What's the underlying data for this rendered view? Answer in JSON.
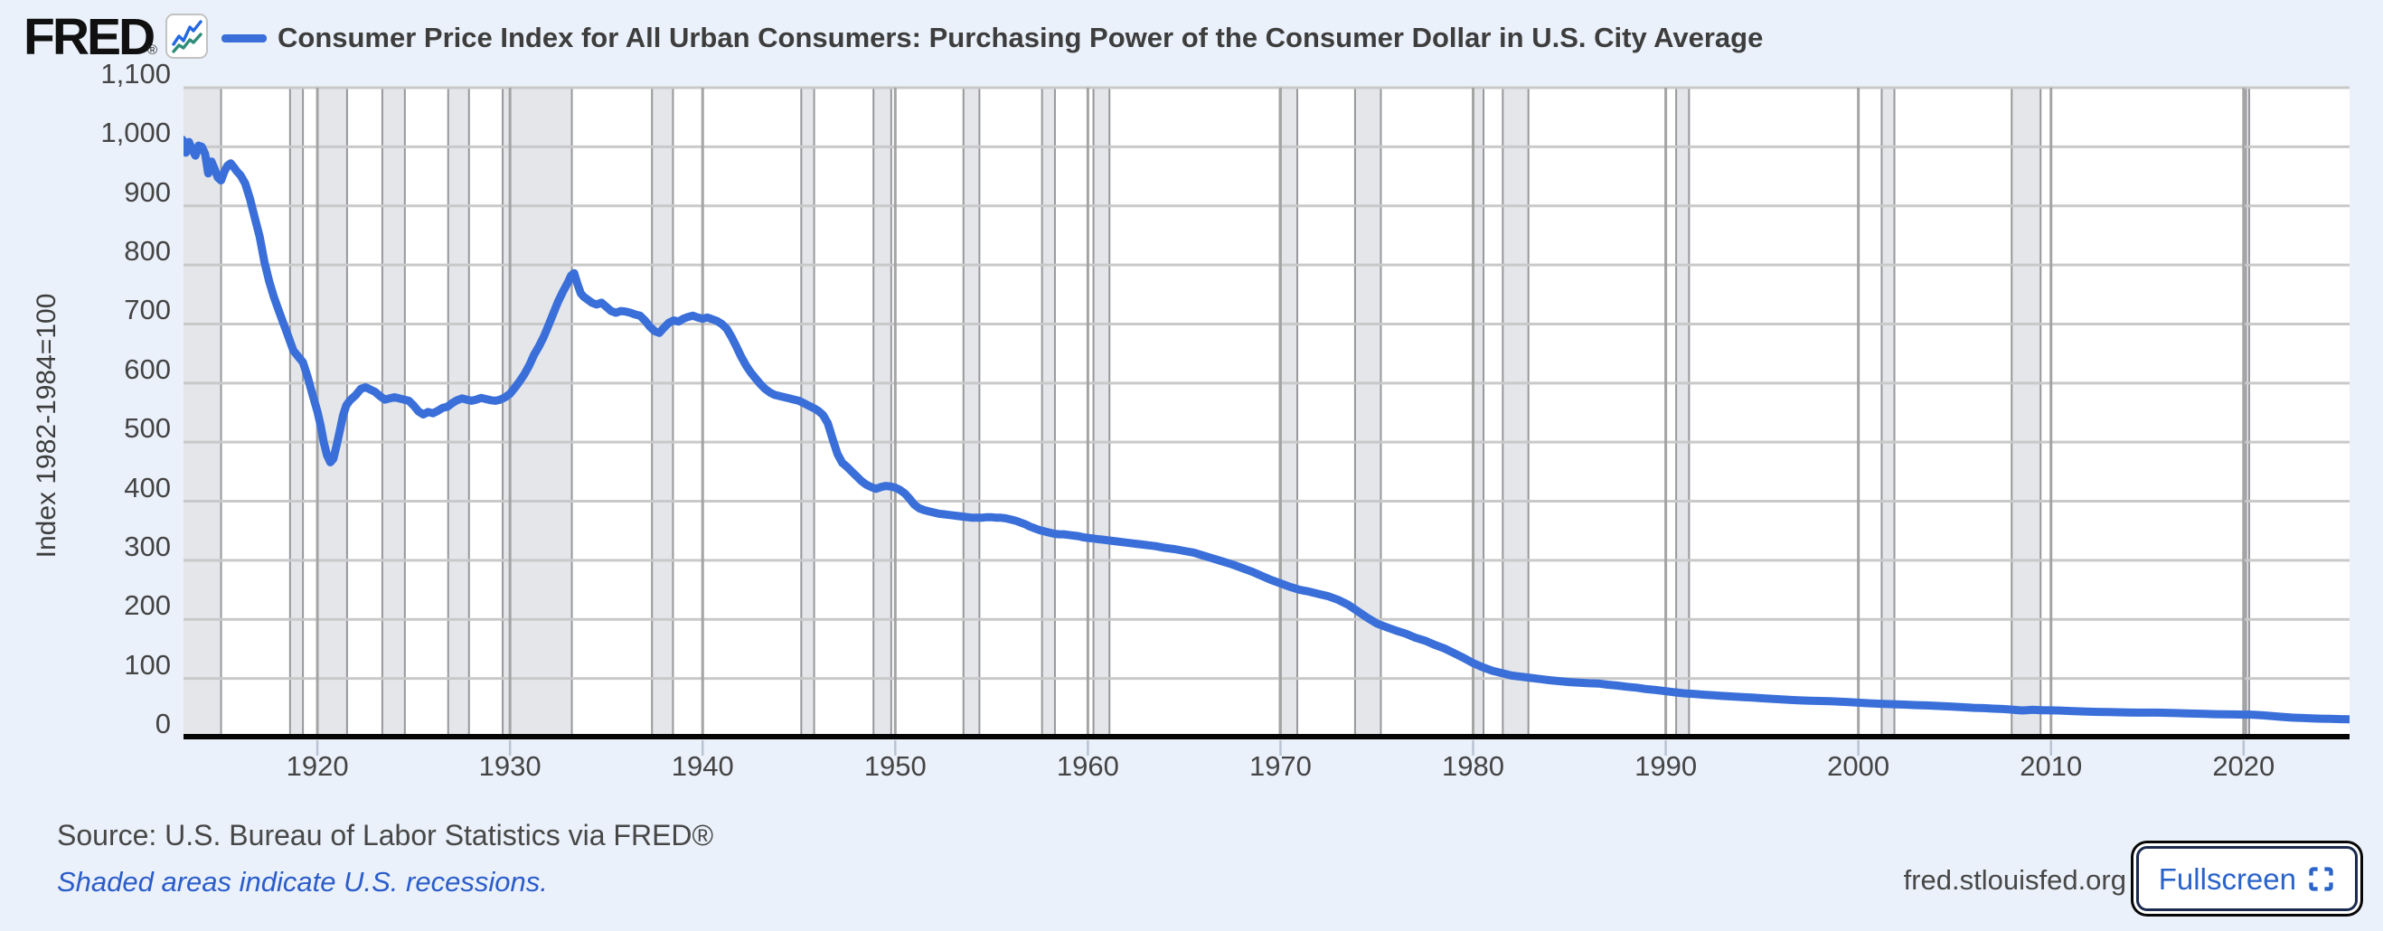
{
  "header": {
    "logo": "FRED",
    "registered": "®",
    "logo_icon": "mini-line-chart-icon",
    "series_title": "Consumer Price Index for All Urban Consumers: Purchasing Power of the Consumer Dollar in U.S. City Average"
  },
  "footer": {
    "source": "Source: U.S. Bureau of Labor Statistics via FRED®",
    "recession_note": "Shaded areas indicate U.S. recessions.",
    "site": "fred.stlouisfed.org",
    "fullscreen_label": "Fullscreen",
    "fullscreen_icon": "expand-icon"
  },
  "colors": {
    "page_bg": "#eaf1fa",
    "plot_bg": "#ffffff",
    "line": "#3a6fd9",
    "recession_band": "#e4e6ea",
    "recession_band_edge": "#96989b",
    "h_gridline": "#c9c9c9",
    "v_gridline": "#a4a4a4",
    "axis": "#050505",
    "x_tick_mark": "#b9c3d3",
    "logo_icon_blue": "#2468e0",
    "logo_icon_teal": "#2e8c78",
    "link_blue": "#2b5cc9",
    "button_border": "#1a2b4f",
    "button_text": "#2a63c9"
  },
  "chart_data": {
    "type": "line",
    "title": "Consumer Price Index for All Urban Consumers: Purchasing Power of the Consumer Dollar in U.S. City Average",
    "xlabel": "",
    "ylabel": "Index 1982-1984=100",
    "legend_position": "top",
    "grid": true,
    "x_range": [
      1913.05,
      2025.5
    ],
    "ylim": [
      0,
      1100
    ],
    "ytick_values": [
      0,
      100,
      200,
      300,
      400,
      500,
      600,
      700,
      800,
      900,
      1000,
      1100
    ],
    "ytick_labels": [
      "0",
      "100",
      "200",
      "300",
      "400",
      "500",
      "600",
      "700",
      "800",
      "900",
      "1,000",
      "1,100"
    ],
    "xticks": [
      1920,
      1930,
      1940,
      1950,
      1960,
      1970,
      1980,
      1990,
      2000,
      2010,
      2020
    ],
    "recessions": [
      [
        1913.05,
        1915.0
      ],
      [
        1918.58,
        1919.25
      ],
      [
        1920.0,
        1921.54
      ],
      [
        1923.37,
        1924.54
      ],
      [
        1926.79,
        1927.87
      ],
      [
        1929.62,
        1933.21
      ],
      [
        1937.37,
        1938.46
      ],
      [
        1945.12,
        1945.79
      ],
      [
        1948.87,
        1949.79
      ],
      [
        1953.54,
        1954.37
      ],
      [
        1957.62,
        1958.29
      ],
      [
        1960.29,
        1961.12
      ],
      [
        1969.96,
        1970.87
      ],
      [
        1973.87,
        1975.21
      ],
      [
        1980.0,
        1980.54
      ],
      [
        1981.54,
        1982.87
      ],
      [
        1990.54,
        1991.21
      ],
      [
        2001.21,
        2001.87
      ],
      [
        2007.96,
        2009.46
      ],
      [
        2020.12,
        2020.29
      ]
    ],
    "points": [
      [
        1913.0,
        1012
      ],
      [
        1913.17,
        990
      ],
      [
        1913.33,
        1008
      ],
      [
        1913.5,
        995
      ],
      [
        1913.67,
        985
      ],
      [
        1913.83,
        1002
      ],
      [
        1914.0,
        1000
      ],
      [
        1914.17,
        988
      ],
      [
        1914.33,
        955
      ],
      [
        1914.5,
        975
      ],
      [
        1914.67,
        962
      ],
      [
        1914.83,
        948
      ],
      [
        1915.0,
        943
      ],
      [
        1915.17,
        958
      ],
      [
        1915.33,
        968
      ],
      [
        1915.5,
        972
      ],
      [
        1915.67,
        965
      ],
      [
        1915.83,
        958
      ],
      [
        1916.0,
        952
      ],
      [
        1916.25,
        938
      ],
      [
        1916.5,
        912
      ],
      [
        1916.75,
        880
      ],
      [
        1917.0,
        848
      ],
      [
        1917.25,
        805
      ],
      [
        1917.5,
        772
      ],
      [
        1917.75,
        745
      ],
      [
        1918.0,
        722
      ],
      [
        1918.25,
        700
      ],
      [
        1918.5,
        678
      ],
      [
        1918.75,
        655
      ],
      [
        1919.0,
        645
      ],
      [
        1919.25,
        635
      ],
      [
        1919.5,
        610
      ],
      [
        1919.75,
        580
      ],
      [
        1920.0,
        552
      ],
      [
        1920.17,
        528
      ],
      [
        1920.33,
        500
      ],
      [
        1920.5,
        478
      ],
      [
        1920.67,
        466
      ],
      [
        1920.83,
        472
      ],
      [
        1921.0,
        495
      ],
      [
        1921.17,
        520
      ],
      [
        1921.33,
        545
      ],
      [
        1921.5,
        562
      ],
      [
        1921.67,
        570
      ],
      [
        1921.83,
        575
      ],
      [
        1922.0,
        580
      ],
      [
        1922.25,
        590
      ],
      [
        1922.5,
        593
      ],
      [
        1922.75,
        589
      ],
      [
        1923.0,
        585
      ],
      [
        1923.25,
        578
      ],
      [
        1923.5,
        572
      ],
      [
        1923.75,
        574
      ],
      [
        1924.0,
        576
      ],
      [
        1924.25,
        574
      ],
      [
        1924.5,
        572
      ],
      [
        1924.75,
        570
      ],
      [
        1925.0,
        562
      ],
      [
        1925.25,
        552
      ],
      [
        1925.5,
        547
      ],
      [
        1925.75,
        551
      ],
      [
        1926.0,
        549
      ],
      [
        1926.25,
        553
      ],
      [
        1926.5,
        558
      ],
      [
        1926.75,
        560
      ],
      [
        1927.0,
        566
      ],
      [
        1927.25,
        571
      ],
      [
        1927.5,
        574
      ],
      [
        1927.75,
        572
      ],
      [
        1928.0,
        570
      ],
      [
        1928.25,
        572
      ],
      [
        1928.5,
        575
      ],
      [
        1928.75,
        573
      ],
      [
        1929.0,
        571
      ],
      [
        1929.25,
        570
      ],
      [
        1929.5,
        572
      ],
      [
        1929.75,
        576
      ],
      [
        1930.0,
        582
      ],
      [
        1930.25,
        592
      ],
      [
        1930.5,
        603
      ],
      [
        1930.75,
        615
      ],
      [
        1931.0,
        630
      ],
      [
        1931.25,
        648
      ],
      [
        1931.5,
        662
      ],
      [
        1931.75,
        678
      ],
      [
        1932.0,
        698
      ],
      [
        1932.25,
        718
      ],
      [
        1932.5,
        738
      ],
      [
        1932.75,
        755
      ],
      [
        1933.0,
        770
      ],
      [
        1933.17,
        782
      ],
      [
        1933.33,
        786
      ],
      [
        1933.5,
        768
      ],
      [
        1933.67,
        752
      ],
      [
        1933.83,
        746
      ],
      [
        1934.0,
        742
      ],
      [
        1934.25,
        736
      ],
      [
        1934.5,
        733
      ],
      [
        1934.75,
        736
      ],
      [
        1935.0,
        729
      ],
      [
        1935.25,
        722
      ],
      [
        1935.5,
        719
      ],
      [
        1935.75,
        722
      ],
      [
        1936.0,
        721
      ],
      [
        1936.25,
        719
      ],
      [
        1936.5,
        716
      ],
      [
        1936.75,
        714
      ],
      [
        1937.0,
        706
      ],
      [
        1937.25,
        696
      ],
      [
        1937.5,
        688
      ],
      [
        1937.75,
        685
      ],
      [
        1938.0,
        694
      ],
      [
        1938.25,
        702
      ],
      [
        1938.5,
        706
      ],
      [
        1938.75,
        704
      ],
      [
        1939.0,
        709
      ],
      [
        1939.25,
        712
      ],
      [
        1939.5,
        714
      ],
      [
        1939.75,
        711
      ],
      [
        1940.0,
        709
      ],
      [
        1940.25,
        711
      ],
      [
        1940.5,
        708
      ],
      [
        1940.75,
        705
      ],
      [
        1941.0,
        700
      ],
      [
        1941.25,
        692
      ],
      [
        1941.5,
        678
      ],
      [
        1941.75,
        662
      ],
      [
        1942.0,
        645
      ],
      [
        1942.25,
        630
      ],
      [
        1942.5,
        618
      ],
      [
        1942.75,
        608
      ],
      [
        1943.0,
        598
      ],
      [
        1943.25,
        590
      ],
      [
        1943.5,
        584
      ],
      [
        1943.75,
        580
      ],
      [
        1944.0,
        578
      ],
      [
        1944.25,
        576
      ],
      [
        1944.5,
        574
      ],
      [
        1944.75,
        572
      ],
      [
        1945.0,
        570
      ],
      [
        1945.25,
        566
      ],
      [
        1945.5,
        562
      ],
      [
        1945.75,
        558
      ],
      [
        1946.0,
        553
      ],
      [
        1946.25,
        546
      ],
      [
        1946.5,
        532
      ],
      [
        1946.75,
        505
      ],
      [
        1947.0,
        480
      ],
      [
        1947.25,
        465
      ],
      [
        1947.5,
        458
      ],
      [
        1947.75,
        450
      ],
      [
        1948.0,
        442
      ],
      [
        1948.25,
        434
      ],
      [
        1948.5,
        428
      ],
      [
        1948.75,
        424
      ],
      [
        1949.0,
        421
      ],
      [
        1949.25,
        424
      ],
      [
        1949.5,
        426
      ],
      [
        1949.75,
        425
      ],
      [
        1950.0,
        423
      ],
      [
        1950.25,
        419
      ],
      [
        1950.5,
        413
      ],
      [
        1950.75,
        404
      ],
      [
        1951.0,
        394
      ],
      [
        1951.25,
        388
      ],
      [
        1951.5,
        385
      ],
      [
        1951.75,
        383
      ],
      [
        1952.0,
        381
      ],
      [
        1952.25,
        379
      ],
      [
        1952.5,
        378
      ],
      [
        1952.75,
        377
      ],
      [
        1953.0,
        376
      ],
      [
        1953.25,
        375
      ],
      [
        1953.5,
        374
      ],
      [
        1953.75,
        373
      ],
      [
        1954.0,
        372
      ],
      [
        1954.25,
        372
      ],
      [
        1954.5,
        372
      ],
      [
        1954.75,
        373
      ],
      [
        1955.0,
        373
      ],
      [
        1955.25,
        372
      ],
      [
        1955.5,
        372
      ],
      [
        1955.75,
        371
      ],
      [
        1956.0,
        369
      ],
      [
        1956.25,
        367
      ],
      [
        1956.5,
        364
      ],
      [
        1956.75,
        361
      ],
      [
        1957.0,
        357
      ],
      [
        1957.25,
        354
      ],
      [
        1957.5,
        351
      ],
      [
        1957.75,
        349
      ],
      [
        1958.0,
        347
      ],
      [
        1958.25,
        345
      ],
      [
        1958.5,
        344
      ],
      [
        1958.75,
        344
      ],
      [
        1959.0,
        343
      ],
      [
        1959.25,
        342
      ],
      [
        1959.5,
        341
      ],
      [
        1959.75,
        339
      ],
      [
        1960.0,
        338
      ],
      [
        1960.25,
        337
      ],
      [
        1960.5,
        336
      ],
      [
        1960.75,
        335
      ],
      [
        1961.0,
        334
      ],
      [
        1961.5,
        332
      ],
      [
        1962.0,
        330
      ],
      [
        1962.5,
        328
      ],
      [
        1963.0,
        326
      ],
      [
        1963.5,
        324
      ],
      [
        1964.0,
        321
      ],
      [
        1964.5,
        319
      ],
      [
        1965.0,
        316
      ],
      [
        1965.5,
        313
      ],
      [
        1966.0,
        308
      ],
      [
        1966.5,
        303
      ],
      [
        1967.0,
        298
      ],
      [
        1967.5,
        293
      ],
      [
        1968.0,
        287
      ],
      [
        1968.5,
        281
      ],
      [
        1969.0,
        274
      ],
      [
        1969.5,
        267
      ],
      [
        1970.0,
        261
      ],
      [
        1970.5,
        255
      ],
      [
        1971.0,
        250
      ],
      [
        1971.5,
        247
      ],
      [
        1972.0,
        243
      ],
      [
        1972.5,
        239
      ],
      [
        1973.0,
        233
      ],
      [
        1973.5,
        225
      ],
      [
        1974.0,
        214
      ],
      [
        1974.5,
        203
      ],
      [
        1975.0,
        193
      ],
      [
        1975.5,
        187
      ],
      [
        1976.0,
        181
      ],
      [
        1976.5,
        176
      ],
      [
        1977.0,
        169
      ],
      [
        1977.5,
        164
      ],
      [
        1978.0,
        157
      ],
      [
        1978.5,
        151
      ],
      [
        1979.0,
        143
      ],
      [
        1979.5,
        135
      ],
      [
        1980.0,
        126
      ],
      [
        1980.5,
        119
      ],
      [
        1981.0,
        113
      ],
      [
        1981.5,
        109
      ],
      [
        1982.0,
        105
      ],
      [
        1982.5,
        103
      ],
      [
        1983.0,
        101
      ],
      [
        1983.5,
        99
      ],
      [
        1984.0,
        97
      ],
      [
        1984.5,
        95.5
      ],
      [
        1985.0,
        94
      ],
      [
        1985.5,
        93
      ],
      [
        1986.0,
        92
      ],
      [
        1986.5,
        91.5
      ],
      [
        1987.0,
        89.5
      ],
      [
        1987.5,
        88
      ],
      [
        1988.0,
        86
      ],
      [
        1988.5,
        84.5
      ],
      [
        1989.0,
        82
      ],
      [
        1989.5,
        80.5
      ],
      [
        1990.0,
        78.5
      ],
      [
        1990.5,
        76.5
      ],
      [
        1991.0,
        74.8
      ],
      [
        1991.5,
        73.8
      ],
      [
        1992.0,
        72.5
      ],
      [
        1992.5,
        71.5
      ],
      [
        1993.0,
        70.3
      ],
      [
        1993.5,
        69.4
      ],
      [
        1994.0,
        68.5
      ],
      [
        1994.5,
        67.6
      ],
      [
        1995.0,
        66.5
      ],
      [
        1995.5,
        65.7
      ],
      [
        1996.0,
        64.6
      ],
      [
        1996.5,
        63.7
      ],
      [
        1997.0,
        62.9
      ],
      [
        1997.5,
        62.4
      ],
      [
        1998.0,
        61.9
      ],
      [
        1998.5,
        61.5
      ],
      [
        1999.0,
        60.9
      ],
      [
        1999.5,
        60.1
      ],
      [
        2000.0,
        59.1
      ],
      [
        2000.5,
        58.2
      ],
      [
        2001.0,
        57.3
      ],
      [
        2001.5,
        56.7
      ],
      [
        2002.0,
        56.2
      ],
      [
        2002.5,
        55.7
      ],
      [
        2003.0,
        54.9
      ],
      [
        2003.5,
        54.4
      ],
      [
        2004.0,
        53.7
      ],
      [
        2004.5,
        52.9
      ],
      [
        2005.0,
        52.2
      ],
      [
        2005.5,
        51.3
      ],
      [
        2006.0,
        50.4
      ],
      [
        2006.5,
        49.8
      ],
      [
        2007.0,
        49.0
      ],
      [
        2007.5,
        48.3
      ],
      [
        2008.0,
        47.2
      ],
      [
        2008.25,
        46.5
      ],
      [
        2008.5,
        45.9
      ],
      [
        2008.75,
        46.4
      ],
      [
        2009.0,
        46.9
      ],
      [
        2009.5,
        46.4
      ],
      [
        2010.0,
        46.1
      ],
      [
        2010.5,
        45.8
      ],
      [
        2011.0,
        45.0
      ],
      [
        2011.5,
        44.3
      ],
      [
        2012.0,
        43.8
      ],
      [
        2012.5,
        43.5
      ],
      [
        2013.0,
        43.2
      ],
      [
        2013.5,
        42.9
      ],
      [
        2014.0,
        42.5
      ],
      [
        2014.5,
        42.2
      ],
      [
        2015.0,
        42.3
      ],
      [
        2015.5,
        42.2
      ],
      [
        2016.0,
        41.9
      ],
      [
        2016.5,
        41.5
      ],
      [
        2017.0,
        41.0
      ],
      [
        2017.5,
        40.6
      ],
      [
        2018.0,
        40.1
      ],
      [
        2018.5,
        39.7
      ],
      [
        2019.0,
        39.4
      ],
      [
        2019.5,
        39.1
      ],
      [
        2020.0,
        38.8
      ],
      [
        2020.25,
        39.0
      ],
      [
        2020.5,
        38.6
      ],
      [
        2021.0,
        37.7
      ],
      [
        2021.5,
        36.4
      ],
      [
        2022.0,
        35.0
      ],
      [
        2022.5,
        33.8
      ],
      [
        2023.0,
        33.2
      ],
      [
        2023.5,
        32.6
      ],
      [
        2024.0,
        32.0
      ],
      [
        2024.5,
        31.6
      ],
      [
        2025.0,
        31.2
      ],
      [
        2025.5,
        31.0
      ]
    ]
  }
}
